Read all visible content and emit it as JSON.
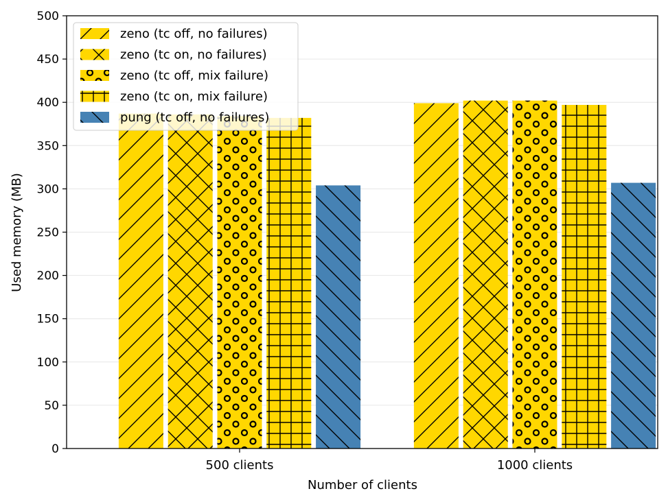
{
  "chart_data": {
    "type": "bar",
    "categories": [
      "500 clients",
      "1000 clients"
    ],
    "xlabel": "Number of clients",
    "ylabel": "Used memory (MB)",
    "ylim": [
      0,
      500
    ],
    "yticks": [
      0,
      50,
      100,
      150,
      200,
      250,
      300,
      350,
      400,
      450,
      500
    ],
    "grid": "horizontal",
    "legend_position": "top-left",
    "series": [
      {
        "name": "zeno (tc off, no failures)",
        "values": [
          387,
          399
        ],
        "color": "#FFD700",
        "hatch": "diagonal"
      },
      {
        "name": "zeno (tc on, no failures)",
        "values": [
          386,
          402
        ],
        "color": "#FFD700",
        "hatch": "cross"
      },
      {
        "name": "zeno (tc off, mix failure)",
        "values": [
          384,
          402
        ],
        "color": "#FFD700",
        "hatch": "circles"
      },
      {
        "name": "zeno (tc on, mix failure)",
        "values": [
          382,
          397
        ],
        "color": "#FFD700",
        "hatch": "grid"
      },
      {
        "name": "pung (tc off, no failures)",
        "values": [
          304,
          307
        ],
        "color": "#4682B4",
        "hatch": "backslash"
      }
    ]
  }
}
